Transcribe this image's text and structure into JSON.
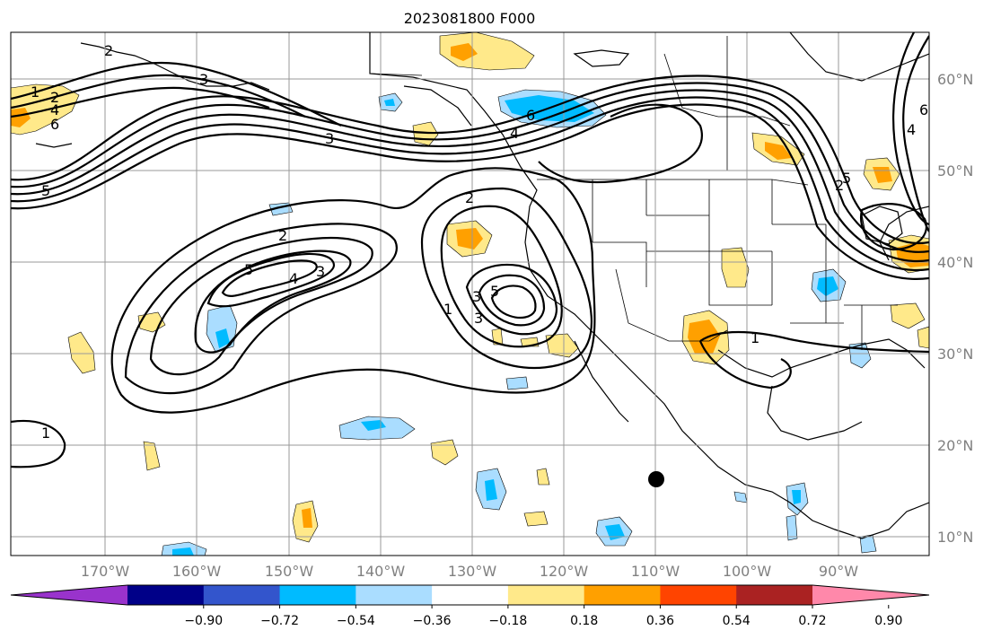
{
  "title": "2023081800 F000",
  "lat_labels": [
    "60°N",
    "50°N",
    "40°N",
    "30°N",
    "20°N",
    "10°N"
  ],
  "lon_labels": [
    "170°W",
    "160°W",
    "150°W",
    "140°W",
    "130°W",
    "120°W",
    "110°W",
    "100°W",
    "90°W"
  ],
  "colorbar": {
    "tick_labels": [
      "−0.90",
      "−0.72",
      "−0.54",
      "−0.36",
      "−0.18",
      "0.18",
      "0.36",
      "0.54",
      "0.72",
      "0.90"
    ],
    "colors": [
      "#9933cc",
      "#000088",
      "#3355cc",
      "#00bbff",
      "#aaddff",
      "#ffffff",
      "#ffe98a",
      "#ffa000",
      "#ff4400",
      "#aa2222",
      "#ff88aa"
    ]
  },
  "contour_labels": [
    "1",
    "2",
    "3",
    "4",
    "5",
    "6",
    "2",
    "3",
    "4",
    "5",
    "2",
    "3",
    "5",
    "1",
    "2",
    "3",
    "6",
    "4",
    "1",
    "5",
    "3",
    "1",
    "2",
    "6",
    "4"
  ],
  "map": {
    "grid": "on",
    "shading_colors": {
      "light_yellow": "#ffe98a",
      "orange": "#ffa000",
      "light_blue": "#aaddff",
      "blue": "#00bbff"
    },
    "marker": "filled-circle"
  }
}
